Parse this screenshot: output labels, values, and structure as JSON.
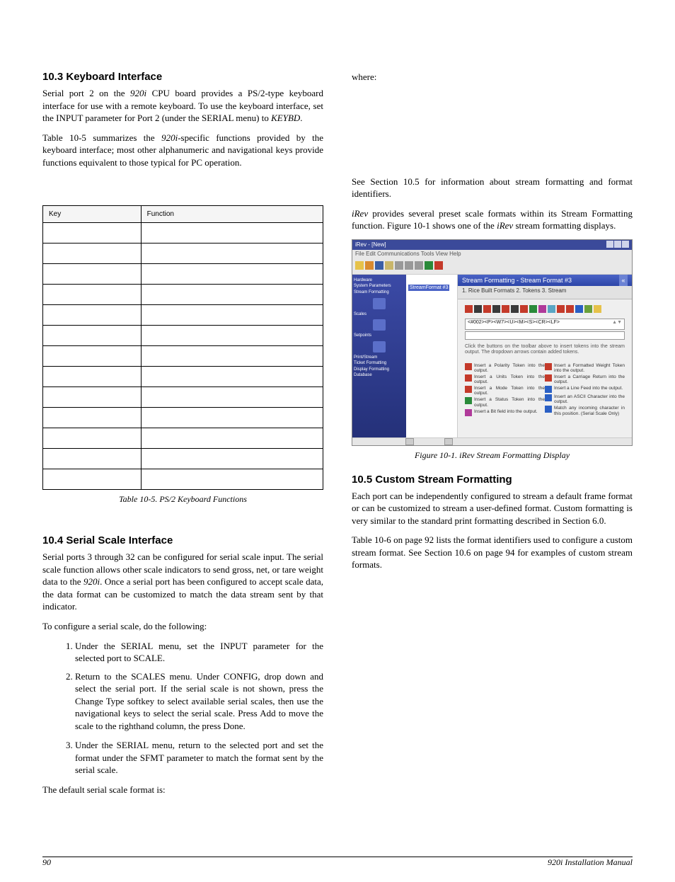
{
  "left": {
    "sec1_title": "10.3 Keyboard Interface",
    "p1a": "Serial port 2 on the ",
    "p1b": "920i",
    "p1c": " CPU board provides a PS/2-type keyboard interface for use with a remote keyboard. To use the keyboard interface, set the INPUT parameter for Port 2 (under the SERIAL menu) to ",
    "p1d": "KEYBD",
    "p1e": ".",
    "p2a": "Table 10-5 summarizes the ",
    "p2b": "920i",
    "p2c": "-specific functions provided by the keyboard interface; most other alphanumeric and navigational keys provide functions equivalent to those typical for PC operation.",
    "table": {
      "headers": [
        "Key",
        "Function"
      ],
      "rowcount": 13
    },
    "table_caption": "Table 10-5. PS/2 Keyboard Functions",
    "sec2_title": "10.4 Serial Scale Interface",
    "p3a": "Serial ports 3 through 32 can be configured for serial scale input. The serial scale function allows other scale indicators to send gross, net, or tare weight data to the ",
    "p3b": "920i",
    "p3c": ". Once a serial port has been configured to accept scale data, the data format can be customized to match the data stream sent by that indicator.",
    "p4": "To configure a serial scale, do the following:",
    "steps": [
      "Under the SERIAL menu, set the INPUT parameter for the selected port to SCALE.",
      "Return to the SCALES menu. Under CONFIG, drop down and select the serial port. If the serial scale is not shown, press the Change Type softkey to select available serial scales, then use the navigational keys to select the serial scale. Press Add to move the scale to the righthand column, the press Done."
    ]
  },
  "right": {
    "step3": "Under the SERIAL menu, return to the selected port and set the format under the SFMT parameter to match the format sent by the serial scale.",
    "p_default": "The default serial scale format is:",
    "p_where": "where:",
    "p_see": "See Section 10.5 for information about stream formatting and format identifiers.",
    "irev1": "iRev",
    "p_irev": " provides several preset scale formats within its Stream Formatting function. Figure 10-1 shows one of the ",
    "irev2": "iRev",
    "p_irev_end": " stream formatting displays.",
    "fig_caption_a": "Figure 10-1. ",
    "fig_caption_b": "iRev",
    "fig_caption_c": " Stream Formatting Display",
    "sec3_title": "10.5 Custom Stream Formatting",
    "p5": "Each port can be independently configured to stream a default frame format or can be customized to stream a user-defined format. Custom formatting is very similar to the standard print formatting described in Section 6.0.",
    "p6": "Table 10-6 on page 92 lists the format identifiers used to configure a custom stream format. See Section 10.6 on page 94 for examples of custom stream formats."
  },
  "fig": {
    "winTitle": "iRev - [New]",
    "menus": "File  Edit  Communications  Tools  View  Help",
    "panelTitle": "Stream Formatting - Stream Format #3",
    "treeItem": "StreamFormat #3",
    "tabs": "1. Rice Built Formats   2. Tokens   3. Stream",
    "fmtString": "<#002><P><W7><U><M><S><CR><LF>",
    "hint": "Click the buttons on the toolbar above to insert tokens into the stream output. The dropdown arrows contain added tokens.",
    "legend_left": [
      {
        "c": "#c43a2a",
        "t": "Insert a Polarity Token into the output."
      },
      {
        "c": "#c43a2a",
        "t": "Insert a Units Token into the output."
      },
      {
        "c": "#c43a2a",
        "t": "Insert a Mode Token into the output."
      },
      {
        "c": "#2a8a3a",
        "t": "Insert a Status Token into the output."
      },
      {
        "c": "#b03a9a",
        "t": "Insert a Bit field into the output."
      }
    ],
    "legend_right": [
      {
        "c": "#c43a2a",
        "t": "Insert a Formatted Weight Token into the output."
      },
      {
        "c": "#c43a2a",
        "t": "Insert a Carriage Return into the output."
      },
      {
        "c": "#2a5fc4",
        "t": "Insert a Line Feed into the output."
      },
      {
        "c": "#2a5fc4",
        "t": "Insert an ASCII Character into the output."
      },
      {
        "c": "#2a5fc4",
        "t": "Match any incoming character in this position. (Serial Scale Only)"
      }
    ],
    "sidebar": [
      "Hardware",
      "System Parameters",
      "Stream Formatting",
      "Scales",
      "Setpoints",
      "Print/Stream",
      "Ticket Formatting",
      "Display Formatting",
      "Database"
    ]
  },
  "footer": {
    "page": "90",
    "title": "920i Installation Manual"
  },
  "colors": {
    "toolbar_icons": [
      "#e6c24a",
      "#d98b2f",
      "#3b5fa6",
      "#c9b66a",
      "#999",
      "#999",
      "#999",
      "#2a8a3a",
      "#c43a2a"
    ],
    "panel_icons": [
      "#c43a2a",
      "#3a3a3a",
      "#c43a2a",
      "#3a3a3a",
      "#c43a2a",
      "#3a3a3a",
      "#c43a2a",
      "#2a8a3a",
      "#b03a9a",
      "#5aa6c4",
      "#c43a2a",
      "#c43a2a",
      "#2a5fc4",
      "#6aa03a",
      "#e6c24a"
    ]
  }
}
